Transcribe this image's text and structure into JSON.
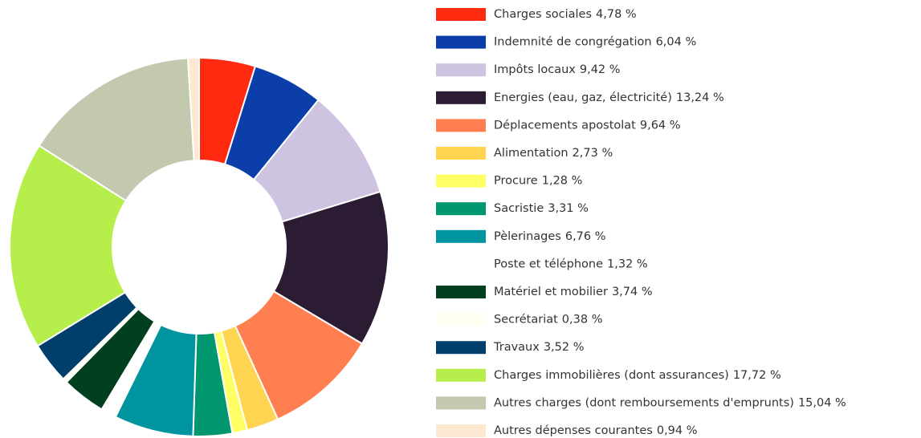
{
  "chart_data": {
    "type": "pie",
    "categories": [
      "Charges sociales",
      "Indemnité de congrégation",
      "Impôts locaux",
      "Energies (eau, gaz, électricité)",
      "Déplacements apostolat",
      "Alimentation",
      "Procure",
      "Sacristie",
      "Pèlerinages",
      "Poste et téléphone",
      "Matériel et mobilier",
      "Secrétariat",
      "Travaux",
      "Charges immobilières (dont assurances)",
      "Autres charges (dont remboursements d'emprunts)",
      "Autres dépenses courantes"
    ],
    "values": [
      4.78,
      6.04,
      9.42,
      13.24,
      9.64,
      2.73,
      1.28,
      3.31,
      6.76,
      1.32,
      3.74,
      0.38,
      3.52,
      17.72,
      15.04,
      0.94
    ],
    "value_labels": [
      "4,78 %",
      "6,04 %",
      "9,42 %",
      "13,24 %",
      "9,64 %",
      "2,73 %",
      "1,28 %",
      "3,31 %",
      "6,76 %",
      "1,32 %",
      "3,74 %",
      "0,38 %",
      "3,52 %",
      "17,72 %",
      "15,04 %",
      "0,94 %"
    ],
    "colors": [
      "#ff2a0f",
      "#0b3ea8",
      "#cec3e0",
      "#2b1c34",
      "#ff7f50",
      "#ffd450",
      "#ffff66",
      "#00966e",
      "#00959e",
      "#ffffff",
      "#003f1f",
      "#fffff2",
      "#003e6b",
      "#b6ee4b",
      "#c2c9ae",
      "#fde8d2"
    ],
    "legend": "right"
  }
}
